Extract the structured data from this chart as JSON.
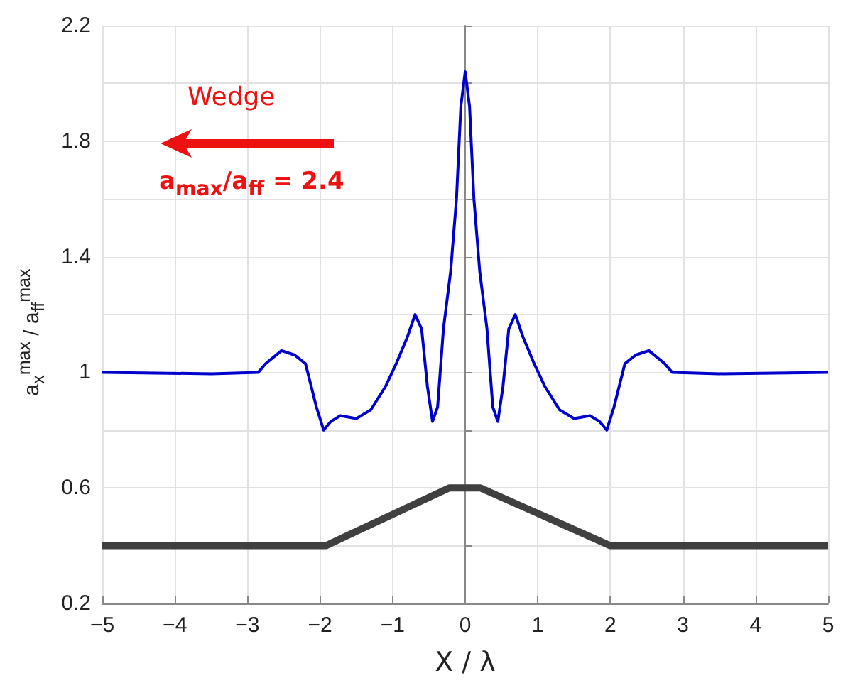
{
  "chart_data": {
    "type": "line",
    "xlabel": "X / λ",
    "ylabel": "a$_{x}$$^{max}$ / a$_{ff}$$^{max}$",
    "annotations": [
      "Wedge",
      "a$_{max}$/a$_{ff}$ = 2.4"
    ],
    "xlim": [
      -5,
      5
    ],
    "xticks": [
      -5,
      -4,
      -3,
      -2,
      -1,
      0,
      1,
      2,
      3,
      4,
      5
    ],
    "ylim": [
      0.2,
      2.2
    ],
    "yticks": [
      0.2,
      {
        "value": 0.4,
        "label": null
      },
      0.6,
      {
        "value": 0.8,
        "label": null
      },
      1,
      {
        "value": 1.2,
        "label": null
      },
      1.4,
      {
        "value": 1.6,
        "label": null
      },
      1.8,
      {
        "value": 2.0,
        "label": null
      },
      2.2
    ],
    "grid": true,
    "series": [
      {
        "color": "#0000cc",
        "x": [
          -5,
          -3.5,
          -2.85,
          -2.75,
          -2.53,
          -2.35,
          -2.2,
          -2.05,
          -1.95,
          -1.85,
          -1.72,
          -1.5,
          -1.3,
          -1.1,
          -0.95,
          -0.8,
          -0.69,
          -0.6,
          -0.52,
          -0.45,
          -0.38,
          -0.3,
          -0.2,
          -0.12,
          -0.06,
          0,
          0.06,
          0.12,
          0.2,
          0.3,
          0.38,
          0.45,
          0.52,
          0.6,
          0.69,
          0.8,
          0.95,
          1.1,
          1.3,
          1.5,
          1.72,
          1.85,
          1.95,
          2.05,
          2.2,
          2.35,
          2.53,
          2.75,
          2.85,
          3.5,
          5
        ],
        "values": [
          1.0,
          0.995,
          1.0,
          1.03,
          1.075,
          1.06,
          1.03,
          0.88,
          0.8,
          0.83,
          0.85,
          0.84,
          0.87,
          0.95,
          1.03,
          1.12,
          1.2,
          1.15,
          0.95,
          0.83,
          0.88,
          1.15,
          1.35,
          1.6,
          1.92,
          2.04,
          1.92,
          1.6,
          1.35,
          1.15,
          0.88,
          0.83,
          0.95,
          1.15,
          1.2,
          1.12,
          1.03,
          0.95,
          0.87,
          0.84,
          0.85,
          0.83,
          0.8,
          0.88,
          1.03,
          1.06,
          1.075,
          1.03,
          1.0,
          0.995,
          1.0
        ]
      },
      {
        "color": "#404040",
        "x": [
          -5,
          -1.92,
          -0.22,
          0.21,
          2.0,
          5
        ],
        "values": [
          0.4,
          0.4,
          0.6,
          0.6,
          0.4,
          0.4
        ]
      }
    ]
  }
}
